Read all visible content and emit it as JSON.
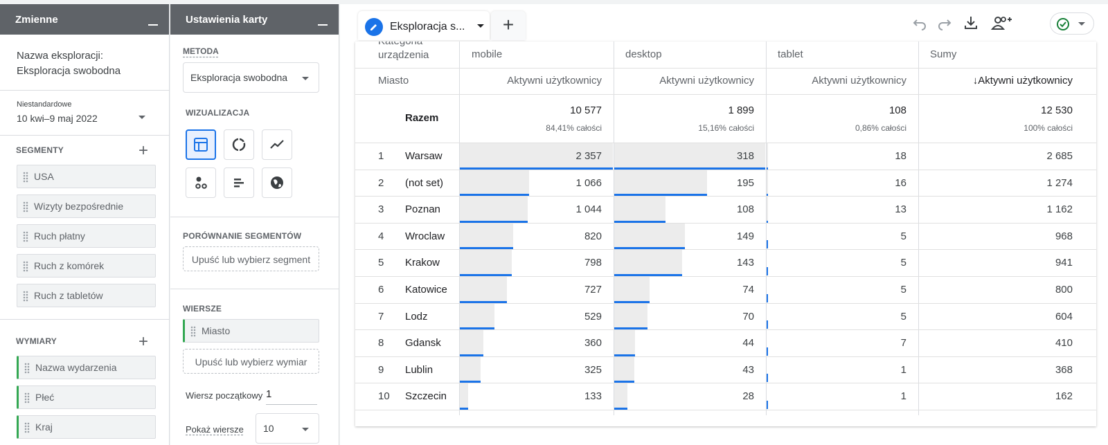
{
  "variables_panel": {
    "title": "Zmienne",
    "exploration_name_label": "Nazwa eksploracji:",
    "exploration_name": "Eksploracja swobodna",
    "date_tag": "Niestandardowe",
    "date_range": "10 kwi–9 maj 2022",
    "segments_title": "SEGMENTY",
    "segments": [
      "USA",
      "Wizyty bezpośrednie",
      "Ruch płatny",
      "Ruch z komórek",
      "Ruch z tabletów"
    ],
    "dimensions_title": "WYMIARY",
    "dimensions": [
      "Nazwa wydarzenia",
      "Płeć",
      "Kraj"
    ]
  },
  "settings_panel": {
    "title": "Ustawienia karty",
    "method_label": "METODA",
    "method_value": "Eksploracja swobodna",
    "visualization_label": "WIZUALIZACJA",
    "segment_compare_label": "PORÓWNANIE SEGMENTÓW",
    "segment_dropzone": "Upuść lub wybierz segment",
    "rows_label": "WIERSZE",
    "row_chip": "Miasto",
    "dimension_dropzone": "Upuść lub wybierz wymiar",
    "start_row_label": "Wiersz początkowy",
    "start_row_value": "1",
    "show_rows_label": "Pokaż wiersze",
    "show_rows_value": "10"
  },
  "tab": {
    "name": "Eksploracja s...",
    "add": "+"
  },
  "table": {
    "corner_top": "Kategoria urządzenia",
    "corner_bottom": "Miasto",
    "columns": [
      "mobile",
      "desktop",
      "tablet",
      "Sumy"
    ],
    "metric": "Aktywni użytkownicy",
    "metric_sorted": "↓Aktywni użytkownicy",
    "total_label": "Razem",
    "totals": [
      "10 577",
      "1 899",
      "108",
      "12 530"
    ],
    "totals_pct": [
      "84,41% całości",
      "15,16% całości",
      "0,86% całości",
      "100% całości"
    ],
    "rows": [
      {
        "rank": "1",
        "city": "Warsaw",
        "mobile": "2 357",
        "desktop": "318",
        "tablet": "18",
        "total": "2 685",
        "f": [
          1.0,
          1.0,
          0.01
        ]
      },
      {
        "rank": "2",
        "city": "(not set)",
        "mobile": "1 066",
        "desktop": "195",
        "tablet": "16",
        "total": "1 274",
        "f": [
          0.452,
          0.613,
          0.009
        ]
      },
      {
        "rank": "3",
        "city": "Poznan",
        "mobile": "1 044",
        "desktop": "108",
        "tablet": "13",
        "total": "1 162",
        "f": [
          0.443,
          0.34,
          0.007
        ]
      },
      {
        "rank": "4",
        "city": "Wroclaw",
        "mobile": "820",
        "desktop": "149",
        "tablet": "5",
        "total": "968",
        "f": [
          0.348,
          0.469,
          0.0
        ]
      },
      {
        "rank": "5",
        "city": "Krakow",
        "mobile": "798",
        "desktop": "143",
        "tablet": "5",
        "total": "941",
        "f": [
          0.339,
          0.45,
          0.0
        ]
      },
      {
        "rank": "6",
        "city": "Katowice",
        "mobile": "727",
        "desktop": "74",
        "tablet": "5",
        "total": "800",
        "f": [
          0.308,
          0.233,
          0.0
        ]
      },
      {
        "rank": "7",
        "city": "Lodz",
        "mobile": "529",
        "desktop": "70",
        "tablet": "5",
        "total": "604",
        "f": [
          0.224,
          0.22,
          0.0
        ]
      },
      {
        "rank": "8",
        "city": "Gdansk",
        "mobile": "360",
        "desktop": "44",
        "tablet": "7",
        "total": "410",
        "f": [
          0.153,
          0.138,
          0.0
        ]
      },
      {
        "rank": "9",
        "city": "Lublin",
        "mobile": "325",
        "desktop": "43",
        "tablet": "1",
        "total": "368",
        "f": [
          0.138,
          0.135,
          0.0
        ]
      },
      {
        "rank": "10",
        "city": "Szczecin",
        "mobile": "133",
        "desktop": "28",
        "tablet": "1",
        "total": "162",
        "f": [
          0.056,
          0.088,
          0.0
        ]
      }
    ]
  },
  "colors": {
    "accent": "#1a73e8",
    "panel_header": "#5f6368",
    "bar": "#ececec"
  }
}
